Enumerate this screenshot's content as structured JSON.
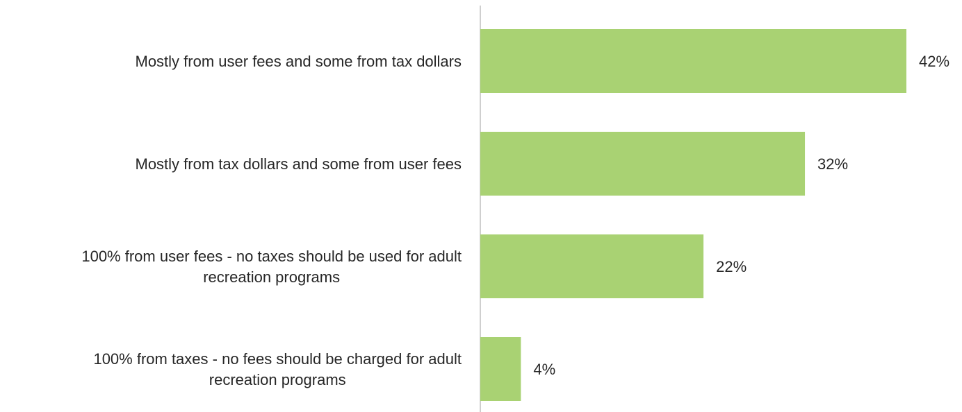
{
  "chart_data": {
    "type": "bar",
    "orientation": "horizontal",
    "categories": [
      [
        "Mostly from user fees and some from tax dollars"
      ],
      [
        "Mostly from tax dollars and some from user fees"
      ],
      [
        "100% from user fees - no taxes should be used for adult",
        "recreation programs"
      ],
      [
        "100% from taxes - no fees should be charged for adult",
        "recreation programs"
      ]
    ],
    "values": [
      42,
      32,
      22,
      4
    ],
    "value_labels": [
      "42%",
      "32%",
      "22%",
      "4%"
    ],
    "bar_color": "#a9d273",
    "axis_color": "#bfbfbf",
    "text_color": "#262626",
    "xlim": [
      0,
      45
    ],
    "grid": false,
    "legend": "none"
  }
}
